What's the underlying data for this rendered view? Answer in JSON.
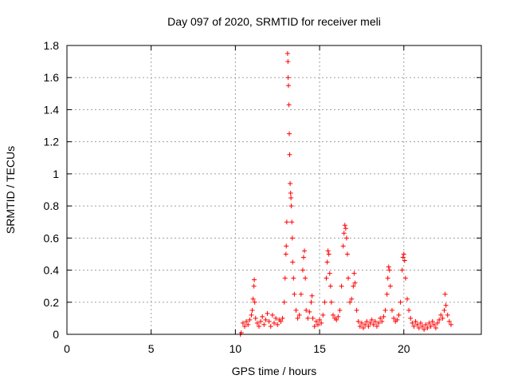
{
  "chart_data": {
    "type": "scatter",
    "title": "Day 097 of 2020, SRMTID for receiver meli",
    "xlabel": "GPS time / hours",
    "ylabel": "SRMTID / TECUs",
    "xlim": [
      0,
      24.6
    ],
    "ylim": [
      0,
      1.8
    ],
    "xticks": [
      0,
      5,
      10,
      15,
      20
    ],
    "xtick_labels": [
      "0",
      "5",
      "10",
      "15",
      "20"
    ],
    "yticks": [
      0,
      0.2,
      0.4,
      0.6,
      0.8,
      1.0,
      1.2,
      1.4,
      1.6,
      1.8
    ],
    "ytick_labels": [
      "0",
      "0.2",
      "0.4",
      "0.6",
      "0.8",
      "1",
      "1.2",
      "1.4",
      "1.6",
      "1.8"
    ],
    "grid": true,
    "marker": "plus",
    "color": "#ff0000",
    "series": [
      {
        "name": "SRMTID",
        "points": [
          [
            10.3,
            0.0
          ],
          [
            10.35,
            0.01
          ],
          [
            10.45,
            0.07
          ],
          [
            10.55,
            0.05
          ],
          [
            10.65,
            0.08
          ],
          [
            10.75,
            0.06
          ],
          [
            10.85,
            0.09
          ],
          [
            10.95,
            0.12
          ],
          [
            11.0,
            0.15
          ],
          [
            11.05,
            0.22
          ],
          [
            11.1,
            0.3
          ],
          [
            11.12,
            0.34
          ],
          [
            11.15,
            0.2
          ],
          [
            11.2,
            0.1
          ],
          [
            11.3,
            0.07
          ],
          [
            11.4,
            0.05
          ],
          [
            11.5,
            0.08
          ],
          [
            11.6,
            0.11
          ],
          [
            11.7,
            0.06
          ],
          [
            11.8,
            0.09
          ],
          [
            11.9,
            0.13
          ],
          [
            12.0,
            0.08
          ],
          [
            12.1,
            0.05
          ],
          [
            12.2,
            0.12
          ],
          [
            12.3,
            0.07
          ],
          [
            12.4,
            0.1
          ],
          [
            12.5,
            0.06
          ],
          [
            12.6,
            0.09
          ],
          [
            12.7,
            0.08
          ],
          [
            12.8,
            0.1
          ],
          [
            12.9,
            0.2
          ],
          [
            12.95,
            0.35
          ],
          [
            13.0,
            0.5
          ],
          [
            13.02,
            0.55
          ],
          [
            13.05,
            0.7
          ],
          [
            13.1,
            1.75
          ],
          [
            13.12,
            1.7
          ],
          [
            13.13,
            1.6
          ],
          [
            13.15,
            1.55
          ],
          [
            13.18,
            1.43
          ],
          [
            13.2,
            1.25
          ],
          [
            13.22,
            1.12
          ],
          [
            13.25,
            0.94
          ],
          [
            13.28,
            0.88
          ],
          [
            13.3,
            0.85
          ],
          [
            13.32,
            0.8
          ],
          [
            13.35,
            0.7
          ],
          [
            13.38,
            0.6
          ],
          [
            13.4,
            0.45
          ],
          [
            13.45,
            0.35
          ],
          [
            13.5,
            0.25
          ],
          [
            13.6,
            0.15
          ],
          [
            13.7,
            0.1
          ],
          [
            13.8,
            0.12
          ],
          [
            13.9,
            0.25
          ],
          [
            14.0,
            0.4
          ],
          [
            14.05,
            0.48
          ],
          [
            14.1,
            0.52
          ],
          [
            14.15,
            0.35
          ],
          [
            14.2,
            0.15
          ],
          [
            14.3,
            0.1
          ],
          [
            14.4,
            0.14
          ],
          [
            14.5,
            0.2
          ],
          [
            14.55,
            0.24
          ],
          [
            14.6,
            0.1
          ],
          [
            14.7,
            0.05
          ],
          [
            14.8,
            0.08
          ],
          [
            14.9,
            0.06
          ],
          [
            15.0,
            0.09
          ],
          [
            15.1,
            0.07
          ],
          [
            15.2,
            0.12
          ],
          [
            15.3,
            0.2
          ],
          [
            15.4,
            0.35
          ],
          [
            15.45,
            0.45
          ],
          [
            15.5,
            0.52
          ],
          [
            15.55,
            0.5
          ],
          [
            15.6,
            0.38
          ],
          [
            15.65,
            0.3
          ],
          [
            15.7,
            0.2
          ],
          [
            15.8,
            0.12
          ],
          [
            15.9,
            0.1
          ],
          [
            16.0,
            0.09
          ],
          [
            16.1,
            0.11
          ],
          [
            16.2,
            0.15
          ],
          [
            16.3,
            0.3
          ],
          [
            16.4,
            0.55
          ],
          [
            16.45,
            0.63
          ],
          [
            16.5,
            0.68
          ],
          [
            16.55,
            0.66
          ],
          [
            16.6,
            0.6
          ],
          [
            16.65,
            0.5
          ],
          [
            16.7,
            0.35
          ],
          [
            16.8,
            0.2
          ],
          [
            16.9,
            0.22
          ],
          [
            17.0,
            0.3
          ],
          [
            17.05,
            0.38
          ],
          [
            17.1,
            0.32
          ],
          [
            17.2,
            0.15
          ],
          [
            17.3,
            0.08
          ],
          [
            17.4,
            0.05
          ],
          [
            17.5,
            0.07
          ],
          [
            17.6,
            0.04
          ],
          [
            17.7,
            0.06
          ],
          [
            17.8,
            0.08
          ],
          [
            17.9,
            0.05
          ],
          [
            18.0,
            0.07
          ],
          [
            18.1,
            0.09
          ],
          [
            18.2,
            0.06
          ],
          [
            18.3,
            0.08
          ],
          [
            18.4,
            0.05
          ],
          [
            18.5,
            0.07
          ],
          [
            18.6,
            0.1
          ],
          [
            18.7,
            0.08
          ],
          [
            18.8,
            0.11
          ],
          [
            18.9,
            0.15
          ],
          [
            19.0,
            0.25
          ],
          [
            19.05,
            0.35
          ],
          [
            19.1,
            0.42
          ],
          [
            19.15,
            0.4
          ],
          [
            19.2,
            0.3
          ],
          [
            19.3,
            0.15
          ],
          [
            19.4,
            0.1
          ],
          [
            19.5,
            0.08
          ],
          [
            19.6,
            0.09
          ],
          [
            19.7,
            0.12
          ],
          [
            19.8,
            0.2
          ],
          [
            19.9,
            0.4
          ],
          [
            19.95,
            0.48
          ],
          [
            20.0,
            0.5
          ],
          [
            20.05,
            0.46
          ],
          [
            20.1,
            0.35
          ],
          [
            20.2,
            0.22
          ],
          [
            20.3,
            0.15
          ],
          [
            20.4,
            0.1
          ],
          [
            20.5,
            0.07
          ],
          [
            20.6,
            0.05
          ],
          [
            20.7,
            0.08
          ],
          [
            20.8,
            0.06
          ],
          [
            20.9,
            0.04
          ],
          [
            21.0,
            0.07
          ],
          [
            21.1,
            0.05
          ],
          [
            21.2,
            0.03
          ],
          [
            21.3,
            0.06
          ],
          [
            21.4,
            0.04
          ],
          [
            21.5,
            0.07
          ],
          [
            21.6,
            0.05
          ],
          [
            21.7,
            0.08
          ],
          [
            21.8,
            0.06
          ],
          [
            21.9,
            0.04
          ],
          [
            22.0,
            0.07
          ],
          [
            22.1,
            0.09
          ],
          [
            22.2,
            0.12
          ],
          [
            22.3,
            0.1
          ],
          [
            22.4,
            0.15
          ],
          [
            22.45,
            0.25
          ],
          [
            22.5,
            0.18
          ],
          [
            22.6,
            0.12
          ],
          [
            22.7,
            0.08
          ],
          [
            22.8,
            0.06
          ]
        ]
      }
    ]
  }
}
